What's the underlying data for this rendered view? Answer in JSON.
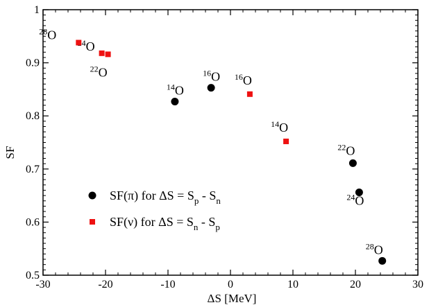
{
  "chart_data": {
    "type": "scatter",
    "xlabel": "ΔS [MeV]",
    "ylabel": "SF",
    "xlim": [
      -30,
      30
    ],
    "ylim": [
      0.5,
      1.0
    ],
    "xticks": [
      -30,
      -20,
      -10,
      0,
      10,
      20,
      30
    ],
    "yticks": [
      0.5,
      0.6,
      0.7,
      0.8,
      0.9,
      1.0
    ],
    "xtick_labels": [
      "-30",
      "-20",
      "-10",
      "0",
      "10",
      "20",
      "30"
    ],
    "ytick_labels": [
      "0.5",
      "0.6",
      "0.7",
      "0.8",
      "0.9",
      "1"
    ],
    "grid": false,
    "legend_position": "lower-left",
    "series": [
      {
        "id": "proton",
        "name": "SF(π) for ΔS = Sp - Sn",
        "legend": {
          "main": "SF(π) for ΔS = S",
          "sub1": "p",
          "mid": " - S",
          "sub2": "n"
        },
        "marker": "circle",
        "color": "#000000",
        "points": [
          {
            "x": -8.9,
            "y": 0.827,
            "mass": "14",
            "el": "O"
          },
          {
            "x": -3.1,
            "y": 0.853,
            "mass": "16",
            "el": "O"
          },
          {
            "x": 19.6,
            "y": 0.711,
            "mass": "22",
            "el": "O"
          },
          {
            "x": 20.6,
            "y": 0.656,
            "mass": "24",
            "el": "O"
          },
          {
            "x": 24.3,
            "y": 0.527,
            "mass": "28",
            "el": "O"
          }
        ]
      },
      {
        "id": "neutron",
        "name": "SF(ν) for ΔS = Sn - Sp",
        "legend": {
          "main": "SF(ν) for ΔS = S",
          "sub1": "n",
          "mid": " - S",
          "sub2": "p"
        },
        "marker": "square",
        "color": "#ee1111",
        "points": [
          {
            "x": -24.3,
            "y": 0.938,
            "mass": "28",
            "el": "O"
          },
          {
            "x": -20.6,
            "y": 0.918,
            "mass": "24",
            "el": "O"
          },
          {
            "x": -19.6,
            "y": 0.916,
            "mass": "22",
            "el": "O"
          },
          {
            "x": 3.1,
            "y": 0.841,
            "mass": "16",
            "el": "O"
          },
          {
            "x": 8.9,
            "y": 0.752,
            "mass": "14",
            "el": "O"
          }
        ]
      }
    ]
  }
}
